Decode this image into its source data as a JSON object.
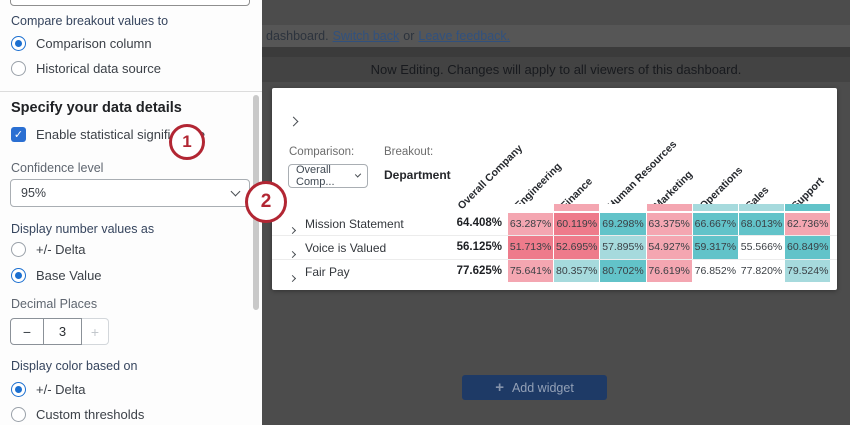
{
  "sidebar": {
    "compare_label": "Compare breakout values to",
    "compare_options": [
      {
        "label": "Comparison column",
        "selected": true
      },
      {
        "label": "Historical data source",
        "selected": false
      }
    ],
    "section_heading": "Specify your data details",
    "checkbox_label": "Enable statistical significance",
    "checkbox_checked": true,
    "check_glyph": "✓",
    "confidence_label": "Confidence level",
    "confidence_value": "95%",
    "number_values_label": "Display number values as",
    "number_options": [
      {
        "label": "+/- Delta",
        "selected": false
      },
      {
        "label": "Base Value",
        "selected": true
      }
    ],
    "decimal_label": "Decimal Places",
    "decimal_minus": "−",
    "decimal_value": "3",
    "decimal_plus": "+",
    "color_label": "Display color based on",
    "color_options": [
      {
        "label": "+/- Delta",
        "selected": true
      },
      {
        "label": "Custom thresholds",
        "selected": false
      }
    ]
  },
  "annotations": {
    "one": "1",
    "two": "2"
  },
  "topbar": {
    "prefix": "dashboard.",
    "link_switch": "Switch back",
    "middle": "or",
    "link_feedback": "Leave feedback."
  },
  "editing_banner": "Now Editing. Changes will apply to all viewers of this dashboard.",
  "widget": {
    "comparison_label": "Comparison:",
    "comparison_value": "Overall Comp...",
    "breakout_label": "Breakout:",
    "breakout_value": "Department",
    "columns": [
      "Overall Company",
      "Engineering",
      "Finance",
      "Human Resources",
      "Marketing",
      "Operations",
      "Sales",
      "Support"
    ],
    "palette": {
      "none": "#ffffff",
      "pink_light": "#f4a6b1",
      "pink_strong": "#ee7b8b",
      "teal_light": "#a6dadd",
      "teal_strong": "#62c3c9"
    },
    "sliver_colors": [
      "none",
      "pink_light",
      "none",
      "pink_light",
      "teal_light",
      "teal_light",
      "teal_strong"
    ],
    "rows": [
      {
        "label": "Mission Statement",
        "cells": [
          {
            "v": "64.408%",
            "c": "none"
          },
          {
            "v": "63.287%",
            "c": "pink_light"
          },
          {
            "v": "60.119%",
            "c": "pink_strong"
          },
          {
            "v": "69.298%",
            "c": "teal_strong"
          },
          {
            "v": "63.375%",
            "c": "pink_light"
          },
          {
            "v": "66.667%",
            "c": "teal_strong"
          },
          {
            "v": "68.013%",
            "c": "teal_strong"
          },
          {
            "v": "62.736%",
            "c": "pink_light"
          }
        ]
      },
      {
        "label": "Voice is Valued",
        "cells": [
          {
            "v": "56.125%",
            "c": "none"
          },
          {
            "v": "51.713%",
            "c": "pink_strong"
          },
          {
            "v": "52.695%",
            "c": "pink_strong"
          },
          {
            "v": "57.895%",
            "c": "teal_light"
          },
          {
            "v": "54.927%",
            "c": "pink_light"
          },
          {
            "v": "59.317%",
            "c": "teal_strong"
          },
          {
            "v": "55.566%",
            "c": "none"
          },
          {
            "v": "60.849%",
            "c": "teal_strong"
          }
        ]
      },
      {
        "label": "Fair Pay",
        "cells": [
          {
            "v": "77.625%",
            "c": "none"
          },
          {
            "v": "75.641%",
            "c": "pink_light"
          },
          {
            "v": "80.357%",
            "c": "teal_light"
          },
          {
            "v": "80.702%",
            "c": "teal_strong"
          },
          {
            "v": "76.619%",
            "c": "pink_light"
          },
          {
            "v": "76.852%",
            "c": "none"
          },
          {
            "v": "77.820%",
            "c": "none"
          },
          {
            "v": "79.524%",
            "c": "teal_light"
          }
        ]
      }
    ]
  },
  "add_widget_label": "Add widget",
  "add_widget_plus": "+"
}
